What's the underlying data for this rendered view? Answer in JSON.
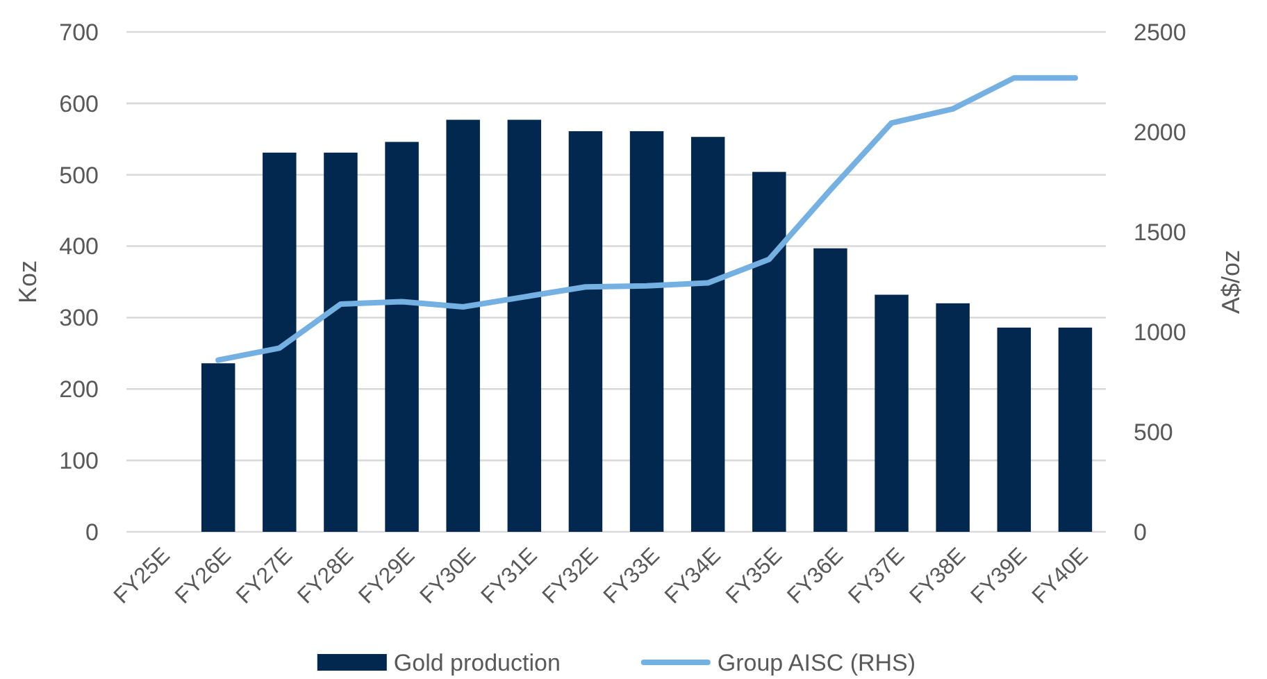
{
  "chart_data": {
    "type": "bar",
    "categories": [
      "FY25E",
      "FY26E",
      "FY27E",
      "FY28E",
      "FY29E",
      "FY30E",
      "FY31E",
      "FY32E",
      "FY33E",
      "FY34E",
      "FY35E",
      "FY36E",
      "FY37E",
      "FY38E",
      "FY39E",
      "FY40E"
    ],
    "series": [
      {
        "name": "Gold production",
        "color": "#03284f",
        "values": [
          null,
          236,
          531,
          531,
          546,
          577,
          577,
          561,
          561,
          553,
          504,
          397,
          332,
          320,
          286,
          286
        ]
      },
      {
        "name": "Group AISC (RHS)",
        "type": "line",
        "axis": "y2",
        "color": "#74b0e2",
        "line_style": "solid",
        "values": [
          null,
          859,
          919,
          1139,
          1151,
          1125,
          1175,
          1225,
          1230,
          1245,
          1363,
          1710,
          2045,
          2115,
          2270,
          2270
        ]
      }
    ],
    "ylabel": "Koz",
    "y2label": "A$/oz",
    "ylim": [
      0,
      700
    ],
    "yticks": [
      0,
      100,
      200,
      300,
      400,
      500,
      600,
      700
    ],
    "y2lim": [
      0,
      2500
    ],
    "y2ticks": [
      0,
      500,
      1000,
      1500,
      2000,
      2500
    ],
    "grid": "y",
    "legend": "bottom"
  }
}
